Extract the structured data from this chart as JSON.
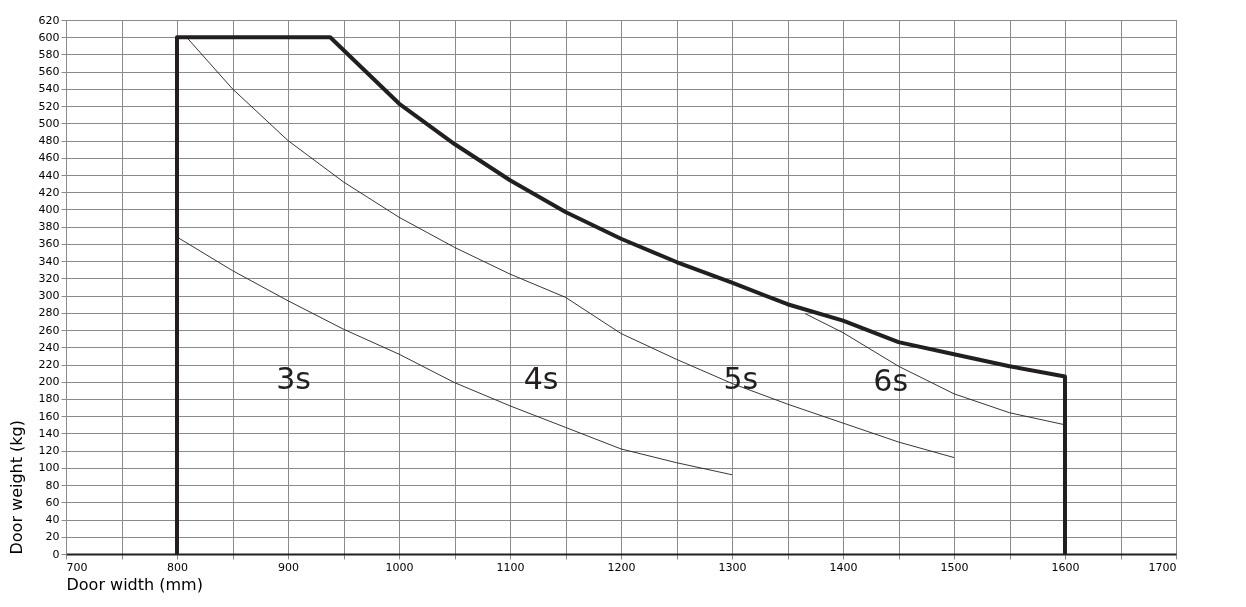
{
  "chart_data": {
    "type": "line",
    "xlabel": "Door width (mm)",
    "ylabel": "Door weight (kg)",
    "xlim": [
      700,
      1700
    ],
    "ylim": [
      0,
      620
    ],
    "xticks": [
      700,
      {
        "value": 750,
        "label": null
      },
      800,
      {
        "value": 850,
        "label": null
      },
      900,
      {
        "value": 950,
        "label": null
      },
      1000,
      {
        "value": 1050,
        "label": null
      },
      1100,
      {
        "value": 1150,
        "label": null
      },
      1200,
      {
        "value": 1250,
        "label": null
      },
      1300,
      {
        "value": 1350,
        "label": null
      },
      1400,
      {
        "value": 1450,
        "label": null
      },
      1500,
      {
        "value": 1550,
        "label": null
      },
      1600,
      {
        "value": 1650,
        "label": null
      },
      1700
    ],
    "yticks": [
      0,
      20,
      40,
      60,
      80,
      100,
      120,
      140,
      160,
      180,
      200,
      220,
      240,
      260,
      280,
      300,
      320,
      340,
      360,
      380,
      400,
      420,
      440,
      460,
      480,
      500,
      520,
      540,
      560,
      580,
      600,
      620
    ],
    "grid": true,
    "series": [
      {
        "color": "#231f20",
        "x": [
          800,
          800,
          938,
          1000,
          1050,
          1100,
          1150,
          1200,
          1250,
          1300,
          1350,
          1400,
          1450,
          1500,
          1550,
          1600,
          1600
        ],
        "values": [
          0,
          600,
          600,
          523,
          476,
          434,
          397,
          366,
          339,
          315,
          290,
          271,
          246,
          232,
          218,
          206,
          0
        ]
      },
      {
        "color": "#231f20",
        "x": [
          810,
          850,
          900,
          950,
          1000,
          1050,
          1100,
          1150,
          1200,
          1250,
          1300,
          1350,
          1400,
          1450,
          1500
        ],
        "values": [
          598,
          540,
          480,
          432,
          391,
          356,
          325,
          298,
          256,
          226,
          198,
          174,
          152,
          130,
          112
        ]
      },
      {
        "color": "#231f20",
        "x": [
          1366,
          1400,
          1450,
          1500,
          1550,
          1600
        ],
        "values": [
          279,
          257,
          218,
          186,
          164,
          150
        ]
      },
      {
        "color": "#231f20",
        "x": [
          800,
          850,
          900,
          950,
          1000,
          1050,
          1100,
          1150,
          1200,
          1250,
          1300
        ],
        "values": [
          368,
          329,
          294,
          261,
          232,
          199,
          172,
          147,
          122,
          106,
          92
        ]
      }
    ],
    "annotations": [
      "3s",
      "4s",
      "5s",
      "6s"
    ]
  }
}
